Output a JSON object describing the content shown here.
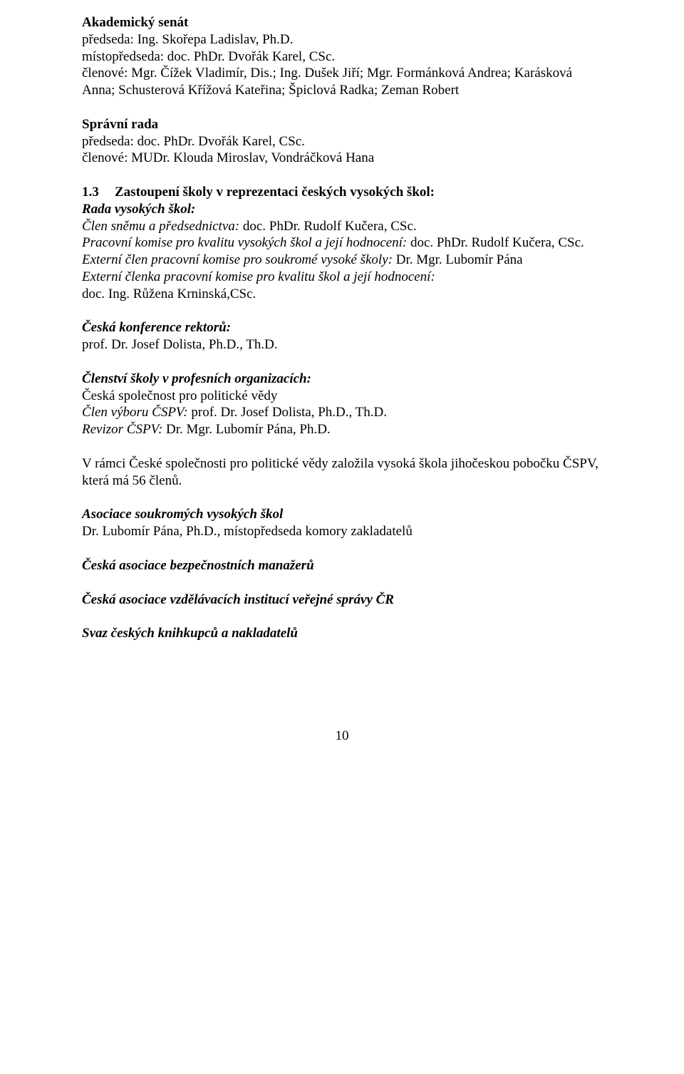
{
  "senat": {
    "title": "Akademický senát",
    "line1a": "předseda: ",
    "line1b": "Ing. Skořepa Ladislav, Ph.D.",
    "line2a": "místopředseda: ",
    "line2b": "doc. PhDr. Dvořák Karel, CSc.",
    "line3a": "členové: ",
    "line3b": "Mgr. Čížek Vladimír, Dis.; Ing. Dušek Jiří; Mgr. Formánková Andrea; Karásková Anna; Schusterová Křížová Kateřina; Špiclová Radka; Zeman Robert"
  },
  "rada": {
    "title": "Správní rada",
    "line1a": "předseda: ",
    "line1b": "doc. PhDr. Dvořák Karel, CSc.",
    "line2a": "členové:   ",
    "line2b": "MUDr. Klouda Miroslav, Vondráčková Hana"
  },
  "sec13": {
    "num": "1.3",
    "title": "Zastoupení školy v reprezentaci českých vysokých škol:",
    "rvs_title": "Rada vysokých škol:",
    "l1a": "Člen sněmu a předsednictva: ",
    "l1b": "doc. PhDr. Rudolf Kučera, CSc.",
    "l2a": "Pracovní komise pro kvalitu vysokých škol a její hodnocení: ",
    "l2b": "doc. PhDr. Rudolf Kučera, CSc.",
    "l3a": "Externí člen pracovní komise pro soukromé vysoké školy: ",
    "l3b": "Dr. Mgr. Lubomír Pána",
    "l4": "Externí členka pracovní komise pro kvalitu škol a její hodnocení:",
    "l5": "doc. Ing. Růžena Krninská,CSc."
  },
  "ckr": {
    "title": "Česká konference rektorů:",
    "line": "prof. Dr. Josef Dolista, Ph.D., Th.D."
  },
  "clenstvi": {
    "title": "Členství školy v profesních organizacích:",
    "l1": "Česká společnost pro politické vědy",
    "l2a": "Člen výboru ČSPV: ",
    "l2b": "prof. Dr. Josef Dolista, Ph.D., Th.D.",
    "l3a": "Revizor ČSPV: ",
    "l3b": "Dr. Mgr. Lubomír Pána, Ph.D."
  },
  "csvp_para": "V rámci České společnosti pro politické vědy založila  vysoká škola jihočeskou pobočku ČSPV, která má 56 členů.",
  "asvs": {
    "title": "Asociace soukromých vysokých škol",
    "line": "Dr. Lubomír Pána, Ph.D., místopředseda komory zakladatelů"
  },
  "cabm": "Česká asociace bezpečnostních manažerů",
  "cavi": "Česká asociace vzdělávacích institucí veřejné správy ČR",
  "svaz": "Svaz českých knihkupců a nakladatelů",
  "pagenum": "10"
}
